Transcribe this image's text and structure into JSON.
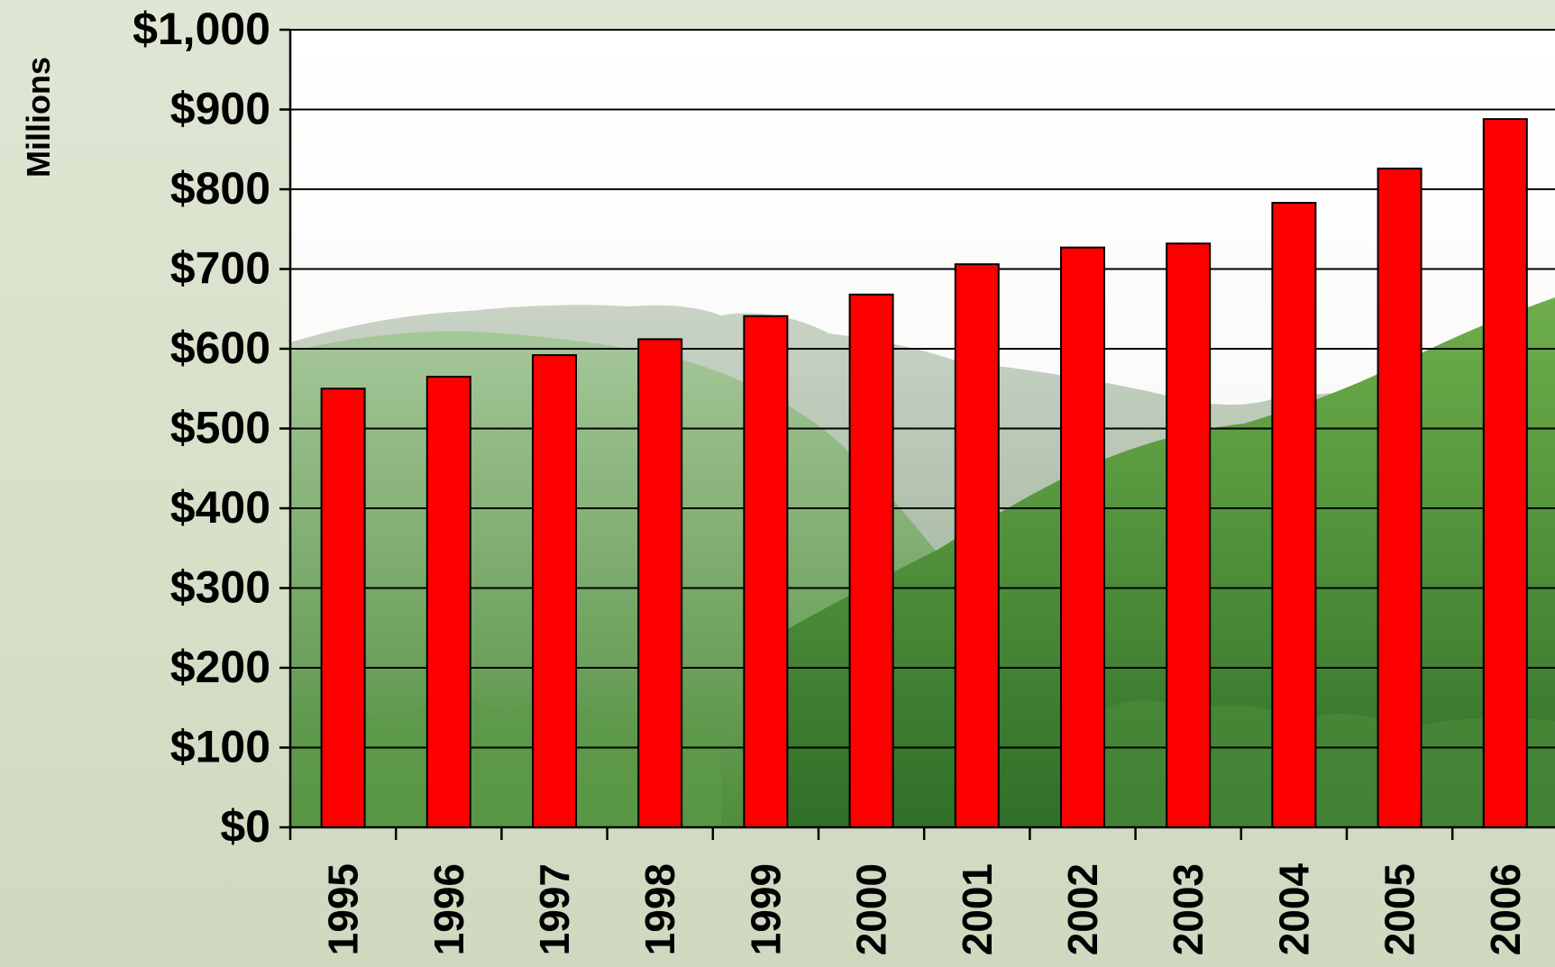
{
  "chart_data": {
    "type": "bar",
    "title": "",
    "xlabel": "",
    "ylabel": "Millions",
    "categories": [
      "1995",
      "1996",
      "1997",
      "1998",
      "1999",
      "2000",
      "2001",
      "2002",
      "2003",
      "2004",
      "2005",
      "2006"
    ],
    "values": [
      550,
      565,
      592,
      612,
      641,
      668,
      706,
      727,
      732,
      783,
      826,
      888
    ],
    "ylim": [
      0,
      1000
    ],
    "y_ticks": [
      0,
      100,
      200,
      300,
      400,
      500,
      600,
      700,
      800,
      900,
      1000
    ],
    "y_tick_labels": [
      "$0",
      "$100",
      "$200",
      "$300",
      "$400",
      "$500",
      "$600",
      "$700",
      "$800",
      "$900",
      "$1,000"
    ],
    "grid": true,
    "legend": "none",
    "bar_color": "#ff0000",
    "bar_outline_color": "#000000",
    "gridline_color": "#000000",
    "plot_background": "photo of green forested mountains"
  }
}
